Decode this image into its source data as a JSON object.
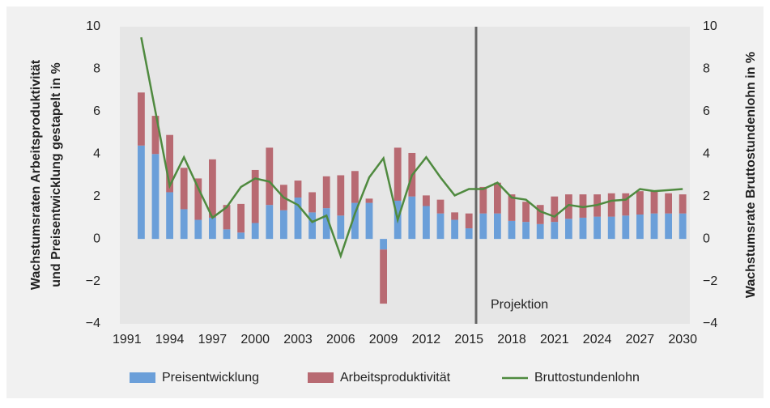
{
  "chart_data": {
    "type": "bar-line",
    "ylabel": [
      "Wachstumsraten Arbeitsproduktivität",
      "und Preisentwicklung gestapelt in %"
    ],
    "y2label": "Wachstumsrate Bruttostundenlohn in %",
    "x": [
      1992,
      1993,
      1994,
      1995,
      1996,
      1997,
      1998,
      1999,
      2000,
      2001,
      2002,
      2003,
      2004,
      2005,
      2006,
      2007,
      2008,
      2009,
      2010,
      2011,
      2012,
      2013,
      2014,
      2015,
      2016,
      2017,
      2018,
      2019,
      2020,
      2021,
      2022,
      2023,
      2024,
      2025,
      2026,
      2027,
      2028,
      2029,
      2030
    ],
    "xlim": [
      1990.5,
      2030.5
    ],
    "xticks": [
      1991,
      1994,
      1997,
      2000,
      2003,
      2006,
      2009,
      2012,
      2015,
      2018,
      2021,
      2024,
      2027,
      2030
    ],
    "ylim": [
      -4,
      10
    ],
    "yticks": [
      {
        "value": -4,
        "label": "−4"
      },
      {
        "value": -2,
        "label": "−2"
      },
      0,
      2,
      4,
      6,
      8,
      10
    ],
    "y2lim": [
      -4,
      10
    ],
    "y2ticks": [
      {
        "value": -4,
        "label": "−4"
      },
      {
        "value": -2,
        "label": "−2"
      },
      0,
      2,
      4,
      6,
      8,
      10
    ],
    "series": [
      {
        "name": "Preisentwicklung",
        "type": "bar",
        "color": "#6b9fd9",
        "values": [
          4.4,
          4.0,
          2.2,
          1.4,
          0.9,
          1.0,
          0.45,
          0.3,
          0.75,
          1.6,
          1.35,
          1.95,
          1.25,
          1.45,
          1.1,
          1.7,
          1.7,
          -0.5,
          1.8,
          2.0,
          1.55,
          1.2,
          0.9,
          0.5,
          1.2,
          1.2,
          0.85,
          0.8,
          0.7,
          0.8,
          0.95,
          1.0,
          1.05,
          1.05,
          1.1,
          1.15,
          1.2,
          1.2,
          1.2
        ]
      },
      {
        "name": "Arbeitsproduktivität",
        "type": "bar",
        "color": "#b86a72",
        "values": [
          2.5,
          1.8,
          2.7,
          1.95,
          1.95,
          2.75,
          1.15,
          1.35,
          2.5,
          2.7,
          1.2,
          0.8,
          0.95,
          1.5,
          1.9,
          1.5,
          0.2,
          -2.55,
          2.5,
          2.05,
          0.5,
          0.65,
          0.35,
          0.7,
          1.25,
          1.45,
          1.25,
          0.95,
          0.9,
          1.2,
          1.15,
          1.1,
          1.05,
          1.1,
          1.05,
          1.1,
          1.05,
          0.95,
          0.9
        ]
      },
      {
        "name": "Bruttostundenlohn",
        "type": "line",
        "axis": "y2",
        "color": "#4f8a3f",
        "values": [
          9.5,
          6.0,
          2.5,
          3.85,
          2.4,
          1.0,
          1.5,
          2.45,
          2.85,
          2.7,
          1.95,
          1.6,
          0.8,
          1.1,
          -0.8,
          1.2,
          2.9,
          3.8,
          0.9,
          3.0,
          3.85,
          2.9,
          2.05,
          2.35,
          2.35,
          2.65,
          1.95,
          1.85,
          1.3,
          1.05,
          1.6,
          1.5,
          1.6,
          1.8,
          1.85,
          2.35,
          2.25,
          2.3,
          2.35
        ]
      }
    ],
    "annotation": {
      "text": "Projektion",
      "x": 2015.5
    }
  }
}
